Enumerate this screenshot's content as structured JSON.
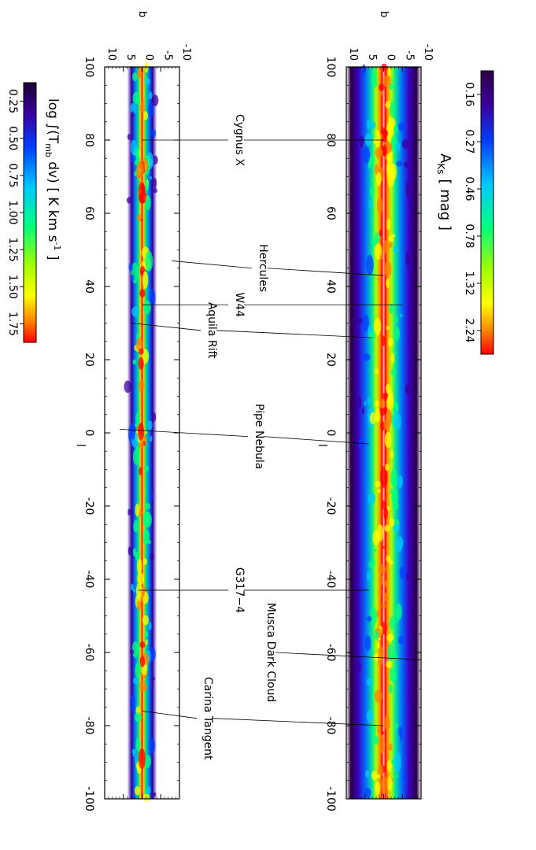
{
  "chart_data": [
    {
      "type": "heatmap",
      "panel": "top",
      "quantity_label": "A",
      "quantity_sub": "Ks",
      "unit_label": "[ mag ]",
      "colorbar_ticks": [
        "0.16",
        "0.27",
        "0.46",
        "0.78",
        "1.32",
        "2.24"
      ],
      "l_axis_label": "l",
      "b_axis_label": "b",
      "l_ticks": [
        100,
        80,
        60,
        40,
        20,
        0,
        -20,
        -40,
        -60,
        -80,
        -100
      ],
      "b_ticks": [
        -10,
        -5,
        0,
        5,
        10
      ],
      "l_range": [
        100,
        -100
      ],
      "b_range": [
        -10,
        10
      ]
    },
    {
      "type": "heatmap",
      "panel": "bottom",
      "colorbar_label_text": "log ∫(T",
      "colorbar_label_sub": "mb",
      "colorbar_label_mid": " dv) [ K km s",
      "colorbar_label_sup": "-1",
      "colorbar_label_end": " ]",
      "colorbar_ticks": [
        "0.25",
        "0.50",
        "0.75",
        "1.00",
        "1.25",
        "1.50",
        "1.75"
      ],
      "l_axis_label": "l",
      "b_axis_label": "b",
      "l_ticks": [
        100,
        80,
        60,
        40,
        20,
        0,
        -20,
        -40,
        -60,
        -80,
        -100
      ],
      "b_ticks": [
        -10,
        -5,
        0,
        5,
        10
      ],
      "l_range": [
        100,
        -100
      ],
      "b_range": [
        -10,
        10
      ]
    }
  ],
  "annotations": [
    {
      "text": "Cygnus X",
      "l": 80,
      "b_top": 0,
      "b_bottom": 0
    },
    {
      "text": "Hercules",
      "l": 45,
      "b_top": 0,
      "b_bottom": -8
    },
    {
      "text": "W44",
      "l": 35,
      "b_top": -5,
      "b_bottom": 0
    },
    {
      "text": "Aquila Rift",
      "l": 28,
      "b_top": 3,
      "b_bottom": 3
    },
    {
      "text": "Pipe Nebula",
      "l": -1,
      "b_top": 4,
      "b_bottom": 6
    },
    {
      "text": "G317−4",
      "l": -43,
      "b_top": 4,
      "b_bottom": 1
    },
    {
      "text": "Musca Dark Cloud",
      "l": -60,
      "b_top": -10,
      "b_bottom": null
    },
    {
      "text": "Carina Tangent",
      "l": -78,
      "b_top": 0,
      "b_bottom": 0
    }
  ],
  "colors": {
    "scale": [
      "#ffffff",
      "#ff0000",
      "#ff8c00",
      "#ffff00",
      "#7cfc00",
      "#00ff64",
      "#00ffff",
      "#0080ff",
      "#0000cd",
      "#4b0082",
      "#1a0033"
    ]
  }
}
